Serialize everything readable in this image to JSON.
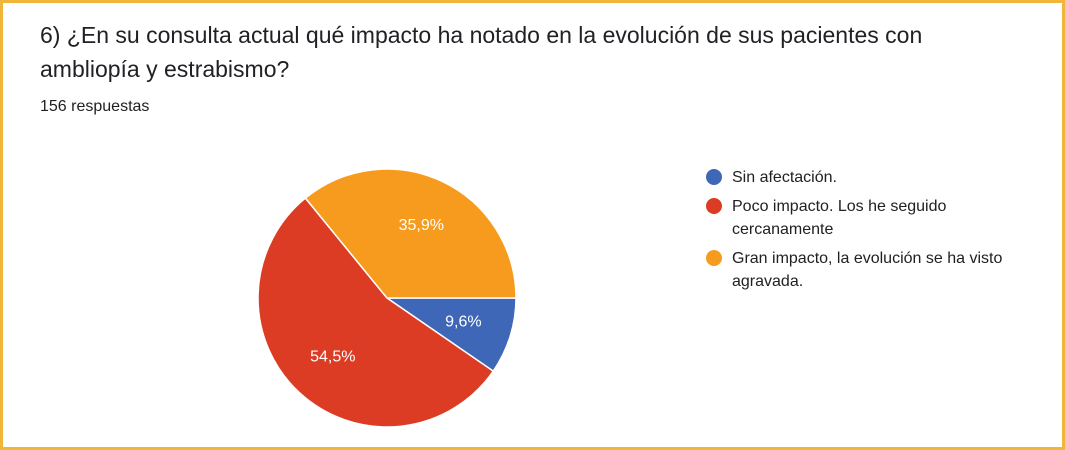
{
  "question": "6) ¿En su consulta actual qué impacto ha notado en la evolución de sus pacientes con ambliopía y estrabismo?",
  "responses": "156 respuestas",
  "colors": {
    "blue": "#3f67b7",
    "red": "#dc3b24",
    "orange": "#f79b1e",
    "border": "#f0b63a"
  },
  "chart_data": {
    "type": "pie",
    "title": "6) ¿En su consulta actual qué impacto ha notado en la evolución de sus pacientes con ambliopía y estrabismo?",
    "categories": [
      "Sin afectación.",
      "Poco impacto. Los he seguido cercanamente",
      "Gran impacto, la evolución se ha visto agravada."
    ],
    "values": [
      9.6,
      54.5,
      35.9
    ],
    "labels": [
      "9,6%",
      "54,5%",
      "35,9%"
    ],
    "colors": [
      "#3f67b7",
      "#dc3b24",
      "#f79b1e"
    ],
    "legend_position": "right"
  }
}
